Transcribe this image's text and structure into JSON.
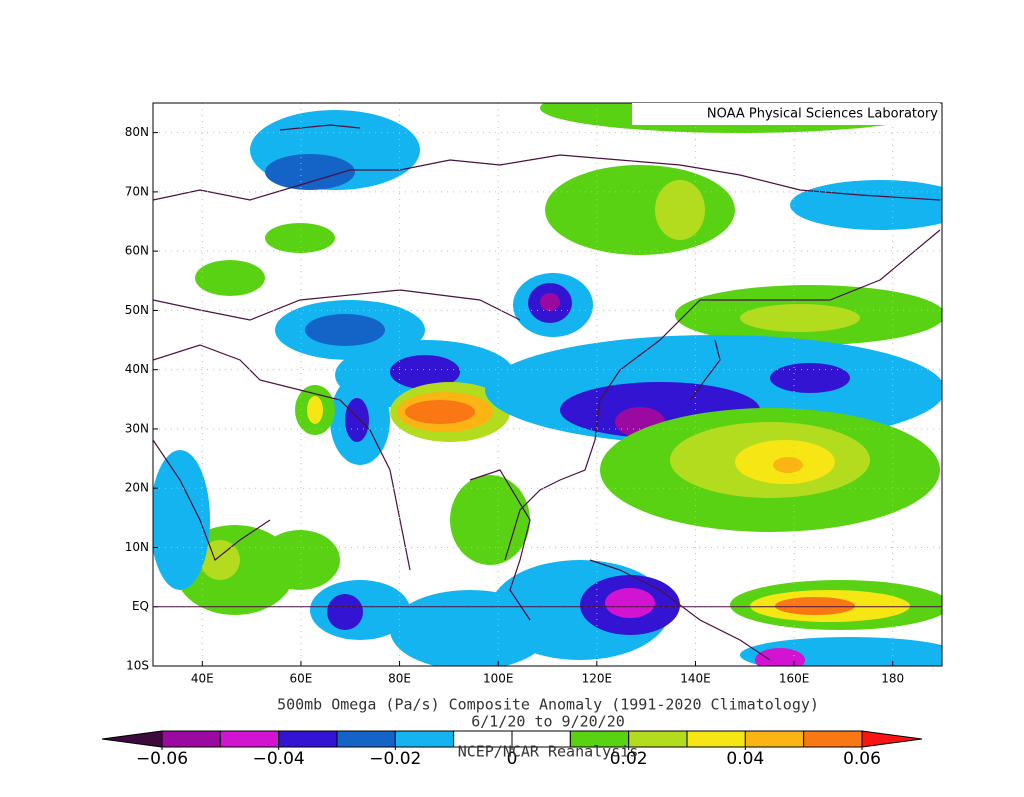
{
  "header": {
    "credit": "NOAA Physical Sciences Laboratory"
  },
  "map": {
    "lonlim": [
      30,
      190
    ],
    "latlim": [
      -10,
      85
    ],
    "lon_ticks": [
      {
        "value": 40,
        "label": "40E"
      },
      {
        "value": 60,
        "label": "60E"
      },
      {
        "value": 80,
        "label": "80E"
      },
      {
        "value": 100,
        "label": "100E"
      },
      {
        "value": 120,
        "label": "120E"
      },
      {
        "value": 140,
        "label": "140E"
      },
      {
        "value": 160,
        "label": "160E"
      },
      {
        "value": 180,
        "label": "180"
      }
    ],
    "lat_ticks": [
      {
        "value": -10,
        "label": "10S"
      },
      {
        "value": 0,
        "label": "EQ"
      },
      {
        "value": 10,
        "label": "10N"
      },
      {
        "value": 20,
        "label": "20N"
      },
      {
        "value": 30,
        "label": "30N"
      },
      {
        "value": 40,
        "label": "40N"
      },
      {
        "value": 50,
        "label": "50N"
      },
      {
        "value": 60,
        "label": "60N"
      },
      {
        "value": 70,
        "label": "70N"
      },
      {
        "value": 80,
        "label": "80N"
      }
    ],
    "grid": true
  },
  "footer": {
    "title": "500mb Omega (Pa/s) Composite Anomaly (1991-2020 Climatology)",
    "dates": "6/1/20  to 9/20/20",
    "source": "NCEP/NCAR Reanalysis"
  },
  "colorbar": {
    "lim": [
      -0.06,
      0.06
    ],
    "colors": [
      "#3c0a3c",
      "#9a0aa0",
      "#d214d2",
      "#3214d2",
      "#1464c8",
      "#14b4f0",
      "#ffffff",
      "#ffffff",
      "#5ad214",
      "#b4dc1e",
      "#f5e614",
      "#fab414",
      "#fa7814",
      "#fa1414"
    ],
    "ticks": [
      {
        "value": -0.06,
        "label": "−0.06"
      },
      {
        "value": -0.04,
        "label": "−0.04"
      },
      {
        "value": -0.02,
        "label": "−0.02"
      },
      0,
      0.02,
      0.04,
      0.06
    ]
  }
}
